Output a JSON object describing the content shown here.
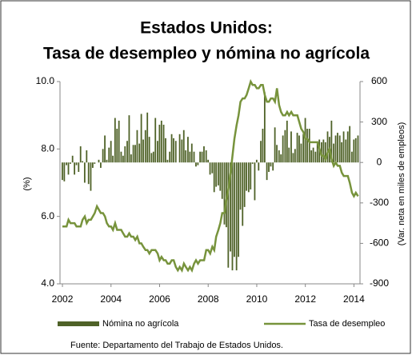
{
  "chart_data": {
    "type": "combo",
    "title": "Estados Unidos:",
    "subtitle": "Tasa de desempleo y nómina no agrícola",
    "ylabel": "(%)",
    "y2label": "(Var. neta en miles de empleos)",
    "source": "Fuente: Departamento del Trabajo de Estados Unidos.",
    "xlim": [
      2001.9,
      2014.25
    ],
    "xticks": [
      2002,
      2004,
      2006,
      2008,
      2010,
      2012,
      2014
    ],
    "ylim": [
      4,
      10
    ],
    "yticks": [
      {
        "value": 4,
        "label": "4.0"
      },
      {
        "value": 6,
        "label": "6.0"
      },
      {
        "value": 8,
        "label": "8.0"
      },
      {
        "value": 10,
        "label": "10.0"
      }
    ],
    "y2lim": [
      -900,
      600
    ],
    "y2ticks": [
      -900,
      -600,
      -300,
      0,
      300,
      600
    ],
    "x": [
      2002,
      2002.08,
      2002.17,
      2002.25,
      2002.33,
      2002.42,
      2002.5,
      2002.58,
      2002.67,
      2002.75,
      2002.83,
      2002.92,
      2003,
      2003.08,
      2003.17,
      2003.25,
      2003.33,
      2003.42,
      2003.5,
      2003.58,
      2003.67,
      2003.75,
      2003.83,
      2003.92,
      2004,
      2004.08,
      2004.17,
      2004.25,
      2004.33,
      2004.42,
      2004.5,
      2004.58,
      2004.67,
      2004.75,
      2004.83,
      2004.92,
      2005,
      2005.08,
      2005.17,
      2005.25,
      2005.33,
      2005.42,
      2005.5,
      2005.58,
      2005.67,
      2005.75,
      2005.83,
      2005.92,
      2006,
      2006.08,
      2006.17,
      2006.25,
      2006.33,
      2006.42,
      2006.5,
      2006.58,
      2006.67,
      2006.75,
      2006.83,
      2006.92,
      2007,
      2007.08,
      2007.17,
      2007.25,
      2007.33,
      2007.42,
      2007.5,
      2007.58,
      2007.67,
      2007.75,
      2007.83,
      2007.92,
      2008,
      2008.08,
      2008.17,
      2008.25,
      2008.33,
      2008.42,
      2008.5,
      2008.58,
      2008.67,
      2008.75,
      2008.83,
      2008.92,
      2009,
      2009.08,
      2009.17,
      2009.25,
      2009.33,
      2009.42,
      2009.5,
      2009.58,
      2009.67,
      2009.75,
      2009.83,
      2009.92,
      2010,
      2010.08,
      2010.17,
      2010.25,
      2010.33,
      2010.42,
      2010.5,
      2010.58,
      2010.67,
      2010.75,
      2010.83,
      2010.92,
      2011,
      2011.08,
      2011.17,
      2011.25,
      2011.33,
      2011.42,
      2011.5,
      2011.58,
      2011.67,
      2011.75,
      2011.83,
      2011.92,
      2012,
      2012.08,
      2012.17,
      2012.25,
      2012.33,
      2012.42,
      2012.5,
      2012.58,
      2012.67,
      2012.75,
      2012.83,
      2012.92,
      2013,
      2013.08,
      2013.17,
      2013.25,
      2013.33,
      2013.42,
      2013.5,
      2013.58,
      2013.67,
      2013.75,
      2013.83,
      2013.92,
      2014,
      2014.08,
      2014.17
    ],
    "series": [
      {
        "name": "Nómina no agrícola",
        "type": "bar",
        "axis": "y2",
        "color": "#4f6228",
        "values": [
          -130,
          -140,
          -20,
          -90,
          -10,
          50,
          -90,
          -20,
          -70,
          120,
          10,
          -150,
          90,
          -160,
          -210,
          -40,
          -10,
          0,
          20,
          -40,
          100,
          200,
          20,
          110,
          160,
          50,
          330,
          250,
          310,
          80,
          50,
          120,
          160,
          350,
          60,
          130,
          130,
          240,
          140,
          360,
          170,
          240,
          370,
          190,
          70,
          80,
          330,
          160,
          280,
          310,
          280,
          180,
          20,
          80,
          210,
          180,
          160,
          0,
          210,
          170,
          240,
          90,
          190,
          80,
          140,
          80,
          -30,
          -20,
          80,
          80,
          120,
          90,
          20,
          -90,
          -80,
          -220,
          -180,
          -170,
          -210,
          -270,
          -460,
          -480,
          -780,
          -660,
          -800,
          -700,
          -800,
          -700,
          -350,
          -470,
          -330,
          -210,
          -220,
          -200,
          -10,
          -280,
          20,
          -60,
          160,
          250,
          520,
          -130,
          -70,
          -30,
          -60,
          260,
          130,
          90,
          60,
          200,
          240,
          310,
          110,
          230,
          70,
          100,
          220,
          200,
          140,
          210,
          330,
          250,
          250,
          90,
          110,
          80,
          150,
          170,
          150,
          170,
          150,
          230,
          190,
          310,
          140,
          200,
          220,
          200,
          150,
          230,
          170,
          230,
          270,
          80,
          170,
          180,
          200
        ]
      },
      {
        "name": "Tasa de desempleo",
        "type": "line",
        "axis": "y",
        "color": "#77933c",
        "values": [
          5.7,
          5.7,
          5.7,
          5.9,
          5.8,
          5.8,
          5.8,
          5.7,
          5.7,
          5.7,
          5.9,
          6.0,
          5.8,
          5.9,
          5.9,
          6.0,
          6.1,
          6.3,
          6.2,
          6.1,
          6.1,
          6.0,
          5.8,
          5.7,
          5.7,
          5.6,
          5.8,
          5.6,
          5.6,
          5.6,
          5.5,
          5.4,
          5.4,
          5.5,
          5.4,
          5.4,
          5.3,
          5.4,
          5.2,
          5.2,
          5.1,
          5.0,
          5.0,
          4.9,
          5.0,
          5.0,
          5.0,
          4.9,
          4.7,
          4.8,
          4.7,
          4.7,
          4.6,
          4.6,
          4.7,
          4.7,
          4.5,
          4.4,
          4.5,
          4.4,
          4.6,
          4.5,
          4.4,
          4.5,
          4.4,
          4.6,
          4.7,
          4.6,
          4.7,
          4.7,
          4.7,
          5.0,
          5.0,
          4.9,
          5.1,
          5.0,
          5.4,
          5.6,
          5.8,
          6.1,
          6.1,
          6.5,
          6.8,
          7.3,
          7.8,
          8.3,
          8.7,
          9.0,
          9.4,
          9.5,
          9.5,
          9.6,
          9.8,
          10.0,
          9.9,
          9.9,
          9.8,
          9.8,
          9.9,
          9.9,
          9.6,
          9.4,
          9.4,
          9.5,
          9.5,
          9.4,
          9.8,
          9.3,
          9.1,
          9.0,
          9.0,
          9.1,
          9.0,
          9.1,
          9.0,
          9.0,
          9.0,
          8.8,
          8.6,
          8.5,
          8.3,
          8.3,
          8.2,
          8.2,
          8.2,
          8.2,
          8.2,
          8.0,
          7.8,
          7.8,
          7.7,
          7.9,
          8.0,
          7.7,
          7.5,
          7.6,
          7.5,
          7.5,
          7.3,
          7.2,
          7.2,
          7.2,
          7.0,
          6.7,
          6.6,
          6.7,
          6.6
        ]
      }
    ]
  }
}
